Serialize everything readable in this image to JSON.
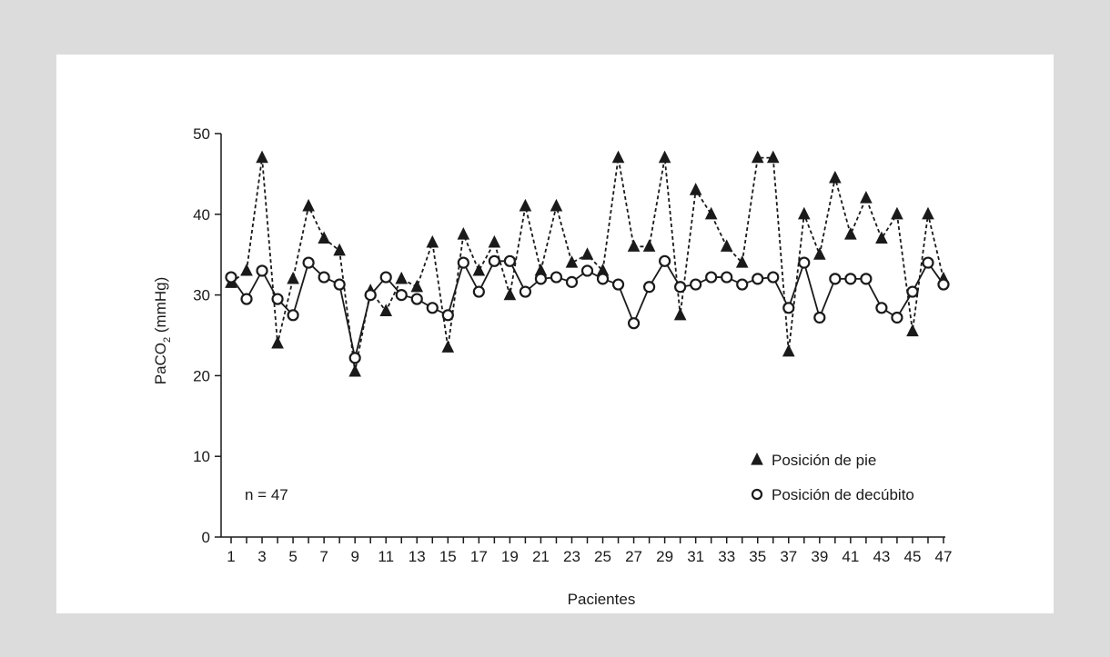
{
  "chart_data": {
    "type": "line",
    "xlabel": "Pacientes",
    "ylabel_main": "PaCO",
    "ylabel_sub": "2",
    "ylabel_unit": " (mmHg)",
    "ylim": [
      0,
      50
    ],
    "yticks": [
      0,
      10,
      20,
      30,
      40,
      50
    ],
    "xlim": [
      1,
      47
    ],
    "xticks_labeled": [
      1,
      3,
      5,
      7,
      9,
      11,
      13,
      15,
      17,
      19,
      21,
      23,
      25,
      27,
      29,
      31,
      33,
      35,
      37,
      39,
      41,
      43,
      45,
      47
    ],
    "annotation": "n = 47",
    "legend_position": "bottom-right",
    "grid": false,
    "x": [
      1,
      2,
      3,
      4,
      5,
      6,
      7,
      8,
      9,
      10,
      11,
      12,
      13,
      14,
      15,
      16,
      17,
      18,
      19,
      20,
      21,
      22,
      23,
      24,
      25,
      26,
      27,
      28,
      29,
      30,
      31,
      32,
      33,
      34,
      35,
      36,
      37,
      38,
      39,
      40,
      41,
      42,
      43,
      44,
      45,
      46,
      47
    ],
    "series": [
      {
        "name": "Posición de pie",
        "marker": "triangle",
        "line": "dashed",
        "values": [
          31.5,
          33,
          47,
          24,
          32,
          41,
          37,
          35.5,
          20.5,
          30.5,
          28,
          32,
          31,
          36.5,
          23.5,
          37.5,
          33,
          36.5,
          30,
          41,
          33,
          41,
          34,
          35,
          33,
          47,
          36,
          36,
          47,
          27.5,
          43,
          40,
          36,
          34,
          47,
          47,
          23,
          40,
          35,
          44.5,
          37.5,
          42,
          37,
          40,
          25.5,
          40,
          32
        ]
      },
      {
        "name": "Posición de decúbito",
        "marker": "circle",
        "line": "solid",
        "values": [
          32.2,
          29.5,
          33,
          29.5,
          27.5,
          34,
          32.2,
          31.3,
          22.2,
          30,
          32.2,
          30,
          29.5,
          28.4,
          27.5,
          34,
          30.4,
          34.2,
          34.2,
          30.4,
          32,
          32.2,
          31.6,
          33,
          32,
          31.3,
          26.5,
          31,
          34.2,
          31,
          31.3,
          32.2,
          32.2,
          31.3,
          32,
          32.2,
          28.4,
          34,
          27.2,
          32,
          32,
          32,
          28.4,
          27.2,
          30.4,
          34,
          31.3
        ]
      }
    ]
  }
}
